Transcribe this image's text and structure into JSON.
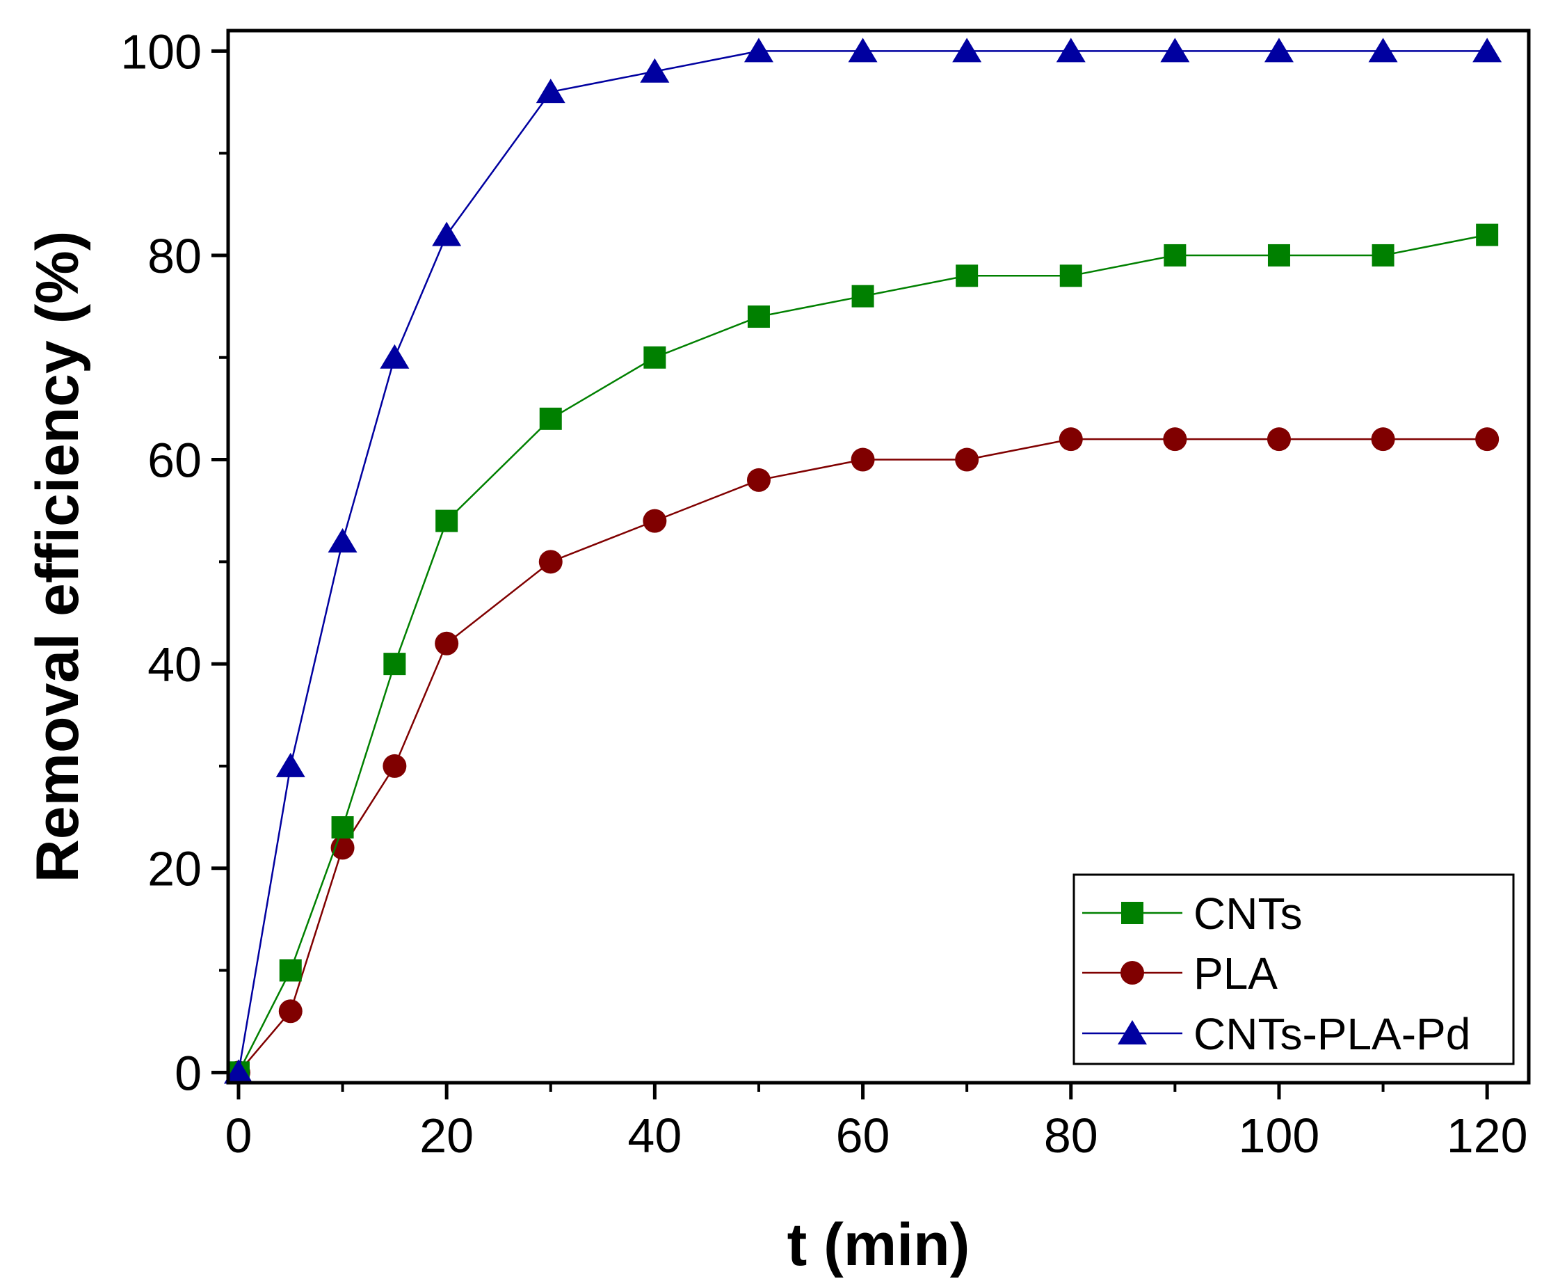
{
  "chart_data": {
    "type": "line",
    "title": "",
    "xlabel": "t (min)",
    "ylabel": "Removal efficiency (%)",
    "xlim": [
      -1,
      124
    ],
    "ylim": [
      -1,
      102
    ],
    "x_major_ticks": [
      0,
      20,
      40,
      60,
      80,
      100,
      120
    ],
    "x_minor_ticks": [
      10,
      30,
      50,
      70,
      90,
      110
    ],
    "y_major_ticks": [
      0,
      20,
      40,
      60,
      80,
      100
    ],
    "y_minor_ticks": [
      10,
      30,
      50,
      70,
      90
    ],
    "grid": false,
    "legend_position": "bottom-right",
    "x": [
      0,
      5,
      10,
      15,
      20,
      30,
      40,
      50,
      60,
      70,
      80,
      90,
      100,
      110,
      120
    ],
    "series": [
      {
        "name": "CNTs",
        "color": "#008000",
        "marker": "square",
        "values": [
          0,
          10,
          24,
          40,
          54,
          64,
          70,
          74,
          76,
          78,
          78,
          80,
          80,
          80,
          82
        ]
      },
      {
        "name": "PLA",
        "color": "#800000",
        "marker": "circle",
        "values": [
          0,
          6,
          22,
          30,
          42,
          50,
          54,
          58,
          60,
          60,
          62,
          62,
          62,
          62,
          62
        ]
      },
      {
        "name": "CNTs-PLA-Pd",
        "color": "#0000A0",
        "marker": "triangle",
        "values": [
          0,
          30,
          52,
          70,
          82,
          96,
          98,
          100,
          100,
          100,
          100,
          100,
          100,
          100,
          100
        ]
      }
    ]
  }
}
